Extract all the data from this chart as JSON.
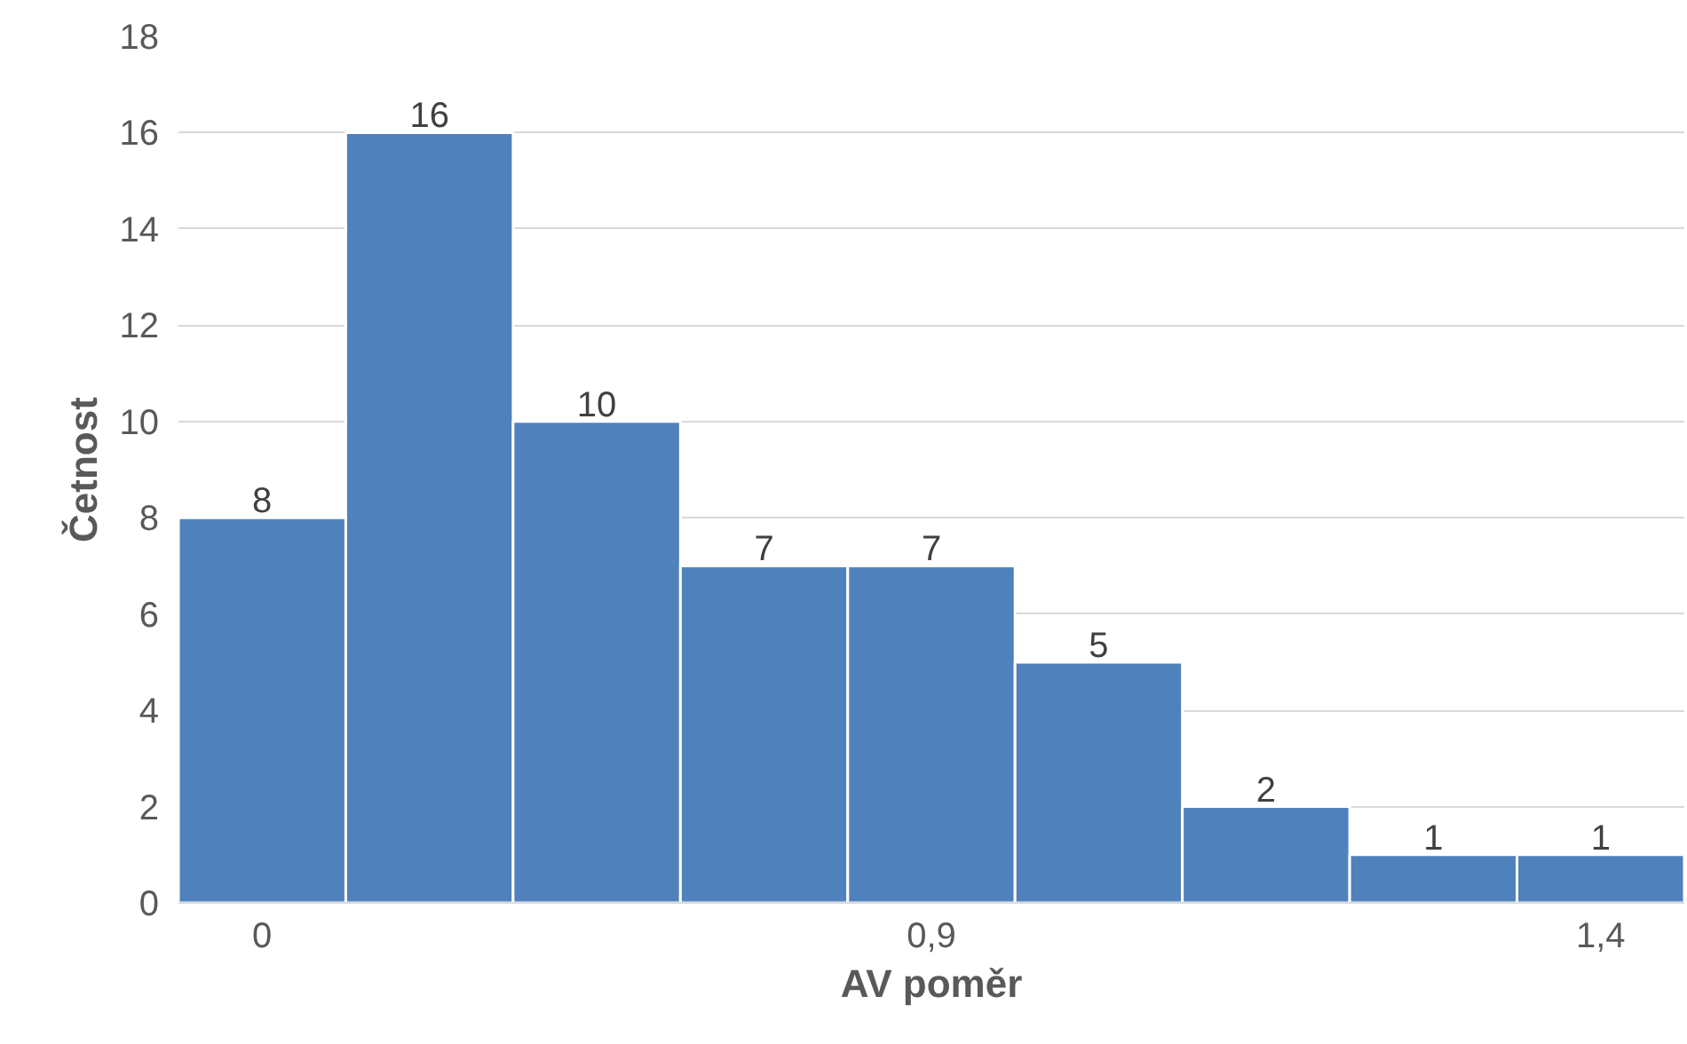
{
  "chart_data": {
    "type": "bar",
    "xlabel": "AV poměr",
    "ylabel": "Četnost",
    "categories": [
      "0",
      null,
      null,
      null,
      "0,9",
      null,
      null,
      null,
      "1,4"
    ],
    "values": [
      8,
      16,
      10,
      7,
      7,
      5,
      2,
      1,
      1
    ],
    "color": "#4f81bd",
    "data_labels": true,
    "ylim": [
      0,
      18
    ],
    "yticks": [
      0,
      2,
      4,
      6,
      8,
      10,
      12,
      14,
      16,
      18
    ],
    "grid": "y"
  }
}
